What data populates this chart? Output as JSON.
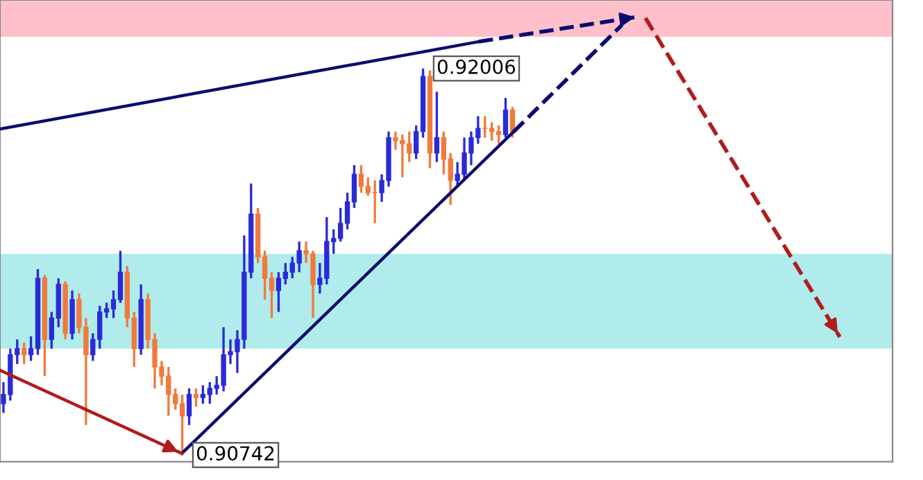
{
  "chart_data": {
    "type": "candlestick",
    "categories": [
      null,
      null,
      null,
      null,
      null,
      null,
      null,
      null,
      null,
      null,
      null,
      null,
      null,
      null,
      null,
      null,
      null,
      null,
      null,
      null,
      null,
      null,
      null,
      null,
      null,
      null,
      null,
      null,
      null,
      null,
      null,
      null,
      null,
      null,
      null,
      null,
      null,
      null,
      null,
      null,
      null,
      null,
      null,
      null,
      null,
      null,
      null,
      null,
      null,
      null,
      null,
      null,
      null,
      null,
      null,
      null,
      null,
      null,
      null,
      null,
      null,
      null,
      null,
      null,
      null,
      null,
      null,
      null,
      null,
      null,
      null,
      null,
      null,
      null,
      null
    ],
    "ohlc": [
      [
        0.9091,
        0.9098,
        0.9088,
        0.9094
      ],
      [
        0.9094,
        0.9109,
        0.9092,
        0.9107
      ],
      [
        0.9107,
        0.9112,
        0.9104,
        0.9109
      ],
      [
        0.9109,
        0.9111,
        0.9104,
        0.9107
      ],
      [
        0.9107,
        0.9113,
        0.9105,
        0.9109
      ],
      [
        0.9109,
        0.9135,
        0.9107,
        0.9132
      ],
      [
        0.9132,
        0.9133,
        0.91,
        0.9112
      ],
      [
        0.9112,
        0.9121,
        0.9109,
        0.9119
      ],
      [
        0.9119,
        0.9132,
        0.9116,
        0.913
      ],
      [
        0.913,
        0.9131,
        0.9112,
        0.9114
      ],
      [
        0.9114,
        0.9128,
        0.9112,
        0.9125
      ],
      [
        0.9125,
        0.9127,
        0.9114,
        0.9116
      ],
      [
        0.9116,
        0.9119,
        0.9084,
        0.9107
      ],
      [
        0.9107,
        0.9114,
        0.9105,
        0.9112
      ],
      [
        0.9112,
        0.9123,
        0.9109,
        0.9121
      ],
      [
        0.9121,
        0.9124,
        0.9119,
        0.9122
      ],
      [
        0.9122,
        0.9128,
        0.9119,
        0.9125
      ],
      [
        0.9125,
        0.9141,
        0.9124,
        0.9134
      ],
      [
        0.9134,
        0.9136,
        0.9116,
        0.9119
      ],
      [
        0.9119,
        0.9121,
        0.9103,
        0.9109
      ],
      [
        0.9109,
        0.913,
        0.9107,
        0.9125
      ],
      [
        0.9125,
        0.9127,
        0.9109,
        0.9112
      ],
      [
        0.9112,
        0.9114,
        0.9096,
        0.9103
      ],
      [
        0.9103,
        0.9105,
        0.9097,
        0.91
      ],
      [
        0.91,
        0.9103,
        0.9087,
        0.9094
      ],
      [
        0.9094,
        0.9096,
        0.9089,
        0.9091
      ],
      [
        0.9091,
        0.9094,
        0.90742,
        0.9087
      ],
      [
        0.9087,
        0.9096,
        0.9084,
        0.9094
      ],
      [
        0.9094,
        0.9096,
        0.909,
        0.9093
      ],
      [
        0.9093,
        0.9097,
        0.9091,
        0.9094
      ],
      [
        0.9094,
        0.9098,
        0.9091,
        0.9096
      ],
      [
        0.9096,
        0.91,
        0.9094,
        0.9097
      ],
      [
        0.9097,
        0.9116,
        0.9095,
        0.9107
      ],
      [
        0.9107,
        0.9112,
        0.9104,
        0.9108
      ],
      [
        0.9108,
        0.9115,
        0.9101,
        0.9112
      ],
      [
        0.9112,
        0.9146,
        0.9109,
        0.9134
      ],
      [
        0.9134,
        0.9163,
        0.9132,
        0.9153
      ],
      [
        0.9153,
        0.9155,
        0.9137,
        0.9139
      ],
      [
        0.9139,
        0.9141,
        0.9125,
        0.9132
      ],
      [
        0.9132,
        0.9134,
        0.9119,
        0.9128
      ],
      [
        0.9128,
        0.9134,
        0.9121,
        0.9132
      ],
      [
        0.9132,
        0.9137,
        0.913,
        0.9134
      ],
      [
        0.9134,
        0.9139,
        0.9132,
        0.9137
      ],
      [
        0.9137,
        0.9144,
        0.9134,
        0.9141
      ],
      [
        0.9141,
        0.9144,
        0.9137,
        0.914
      ],
      [
        0.914,
        0.9141,
        0.9119,
        0.913
      ],
      [
        0.913,
        0.9137,
        0.9127,
        0.9132
      ],
      [
        0.9132,
        0.9152,
        0.913,
        0.9144
      ],
      [
        0.9144,
        0.9148,
        0.914,
        0.9145
      ],
      [
        0.9145,
        0.9155,
        0.9144,
        0.915
      ],
      [
        0.915,
        0.916,
        0.9148,
        0.9157
      ],
      [
        0.9157,
        0.9169,
        0.9155,
        0.9166
      ],
      [
        0.9166,
        0.9169,
        0.916,
        0.9162
      ],
      [
        0.9162,
        0.9165,
        0.9159,
        0.916
      ],
      [
        0.916,
        0.9164,
        0.915,
        0.916
      ],
      [
        0.916,
        0.9166,
        0.9157,
        0.9164
      ],
      [
        0.9164,
        0.918,
        0.9162,
        0.9178
      ],
      [
        0.9178,
        0.918,
        0.9174,
        0.9177
      ],
      [
        0.9177,
        0.9179,
        0.9165,
        0.9176
      ],
      [
        0.9176,
        0.918,
        0.917,
        0.9173
      ],
      [
        0.9173,
        0.9182,
        0.9171,
        0.918
      ],
      [
        0.918,
        0.92006,
        0.9178,
        0.9198
      ],
      [
        0.9198,
        0.92,
        0.9168,
        0.9173
      ],
      [
        0.9173,
        0.9193,
        0.917,
        0.9178
      ],
      [
        0.9178,
        0.918,
        0.9166,
        0.9171
      ],
      [
        0.9171,
        0.9173,
        0.9156,
        0.9164
      ],
      [
        0.9164,
        0.917,
        0.9162,
        0.9166
      ],
      [
        0.9166,
        0.9178,
        0.9164,
        0.9173
      ],
      [
        0.9173,
        0.918,
        0.9169,
        0.9178
      ],
      [
        0.9178,
        0.9185,
        0.9176,
        0.9181
      ],
      [
        0.9181,
        0.9185,
        0.9178,
        0.9181
      ],
      [
        0.9181,
        0.9183,
        0.9177,
        0.918
      ],
      [
        0.918,
        0.9182,
        0.9176,
        0.9179
      ],
      [
        0.9179,
        0.9191,
        0.9178,
        0.9187
      ],
      [
        0.9187,
        0.9188,
        0.9178,
        0.918
      ]
    ],
    "colors": [
      "#2a2ad8",
      "#2a2ad8",
      "#2a2ad8",
      "#f07a3c",
      "#2a2ad8",
      "#2a2ad8",
      "#f07a3c",
      "#2a2ad8",
      "#2a2ad8",
      "#f07a3c",
      "#2a2ad8",
      "#f07a3c",
      "#f07a3c",
      "#2a2ad8",
      "#2a2ad8",
      "#2a2ad8",
      "#2a2ad8",
      "#2a2ad8",
      "#f07a3c",
      "#f07a3c",
      "#2a2ad8",
      "#f07a3c",
      "#f07a3c",
      "#f07a3c",
      "#f07a3c",
      "#f07a3c",
      "#f07a3c",
      "#2a2ad8",
      "#f07a3c",
      "#2a2ad8",
      "#2a2ad8",
      "#2a2ad8",
      "#2a2ad8",
      "#2a2ad8",
      "#2a2ad8",
      "#2a2ad8",
      "#2a2ad8",
      "#f07a3c",
      "#f07a3c",
      "#f07a3c",
      "#2a2ad8",
      "#2a2ad8",
      "#2a2ad8",
      "#2a2ad8",
      "#f07a3c",
      "#f07a3c",
      "#2a2ad8",
      "#2a2ad8",
      "#2a2ad8",
      "#2a2ad8",
      "#2a2ad8",
      "#2a2ad8",
      "#f07a3c",
      "#f07a3c",
      "#f07a3c",
      "#2a2ad8",
      "#2a2ad8",
      "#f07a3c",
      "#f07a3c",
      "#f07a3c",
      "#2a2ad8",
      "#2a2ad8",
      "#f07a3c",
      "#2a2ad8",
      "#f07a3c",
      "#f07a3c",
      "#2a2ad8",
      "#2a2ad8",
      "#2a2ad8",
      "#2a2ad8",
      "#f07a3c",
      "#f07a3c",
      "#f07a3c",
      "#2a2ad8",
      "#f07a3c"
    ],
    "bands": [
      {
        "axis": "y",
        "from": 0.9211,
        "to": 0.9223,
        "color": "#ffc0cb"
      },
      {
        "axis": "y",
        "from": 0.9109,
        "to": 0.914,
        "color": "#b0ecec"
      }
    ],
    "annotations": [
      "0.92006",
      "0.90742"
    ],
    "ylim": [
      0.9072,
      0.9223
    ],
    "tick_labels": false
  }
}
